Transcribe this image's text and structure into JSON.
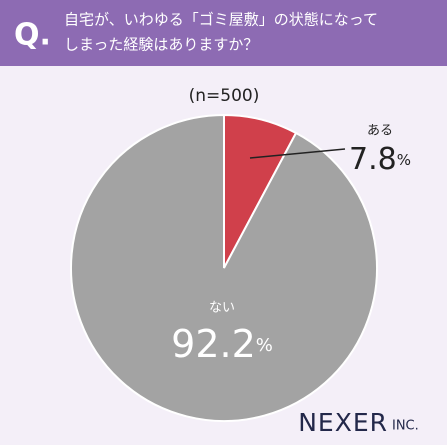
{
  "chart_data": {
    "type": "pie",
    "question_label": "Q.",
    "title": [
      "自宅が、いわゆる「ゴミ屋敷」の状態になって",
      "しまった経験はありますか？"
    ],
    "subtitle": "(n=500)",
    "categories": [
      "ある",
      "ない"
    ],
    "values": [
      7.8,
      92.2
    ],
    "value_labels": [
      "7.8%",
      "92.2%"
    ],
    "colors": [
      "#d0404b",
      "#a3a3a3"
    ],
    "brand": "NEXER",
    "brand_suffix": "INC."
  }
}
